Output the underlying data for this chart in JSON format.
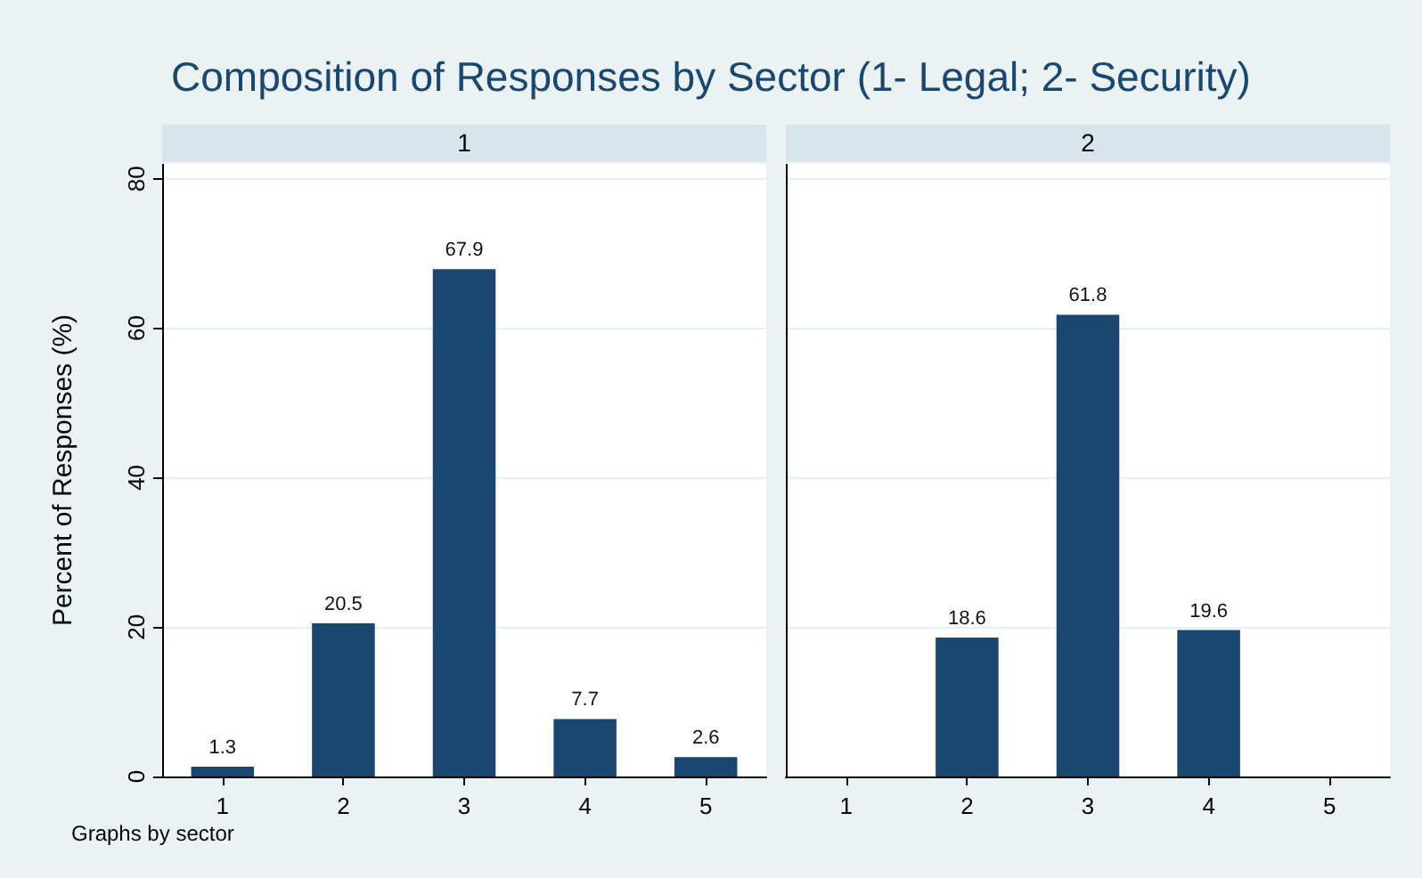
{
  "chart_data": [
    {
      "type": "bar",
      "title": "Composition of Responses by Sector (1- Legal; 2- Security)",
      "subtitle": "1",
      "categories": [
        "1",
        "2",
        "3",
        "4",
        "5"
      ],
      "values": [
        1.3,
        20.5,
        67.9,
        7.7,
        2.6
      ],
      "color": "#1a476f",
      "ylabel": "Percent of Responses (%)",
      "ylim": [
        0,
        82
      ],
      "yticks": [
        0,
        20,
        40,
        60,
        80
      ],
      "grid": "y",
      "data_labels": true,
      "annotations": [
        "Graphs by sector"
      ]
    },
    {
      "type": "bar",
      "subtitle": "2",
      "categories": [
        "1",
        "2",
        "3",
        "4",
        "5"
      ],
      "values": [
        null,
        18.6,
        61.8,
        19.6,
        null
      ],
      "color": "#1a476f",
      "ylim": [
        0,
        82
      ],
      "yticks": [
        0,
        20,
        40,
        60,
        80
      ],
      "grid": "y",
      "data_labels": true,
      "tick_labels": "x"
    }
  ]
}
